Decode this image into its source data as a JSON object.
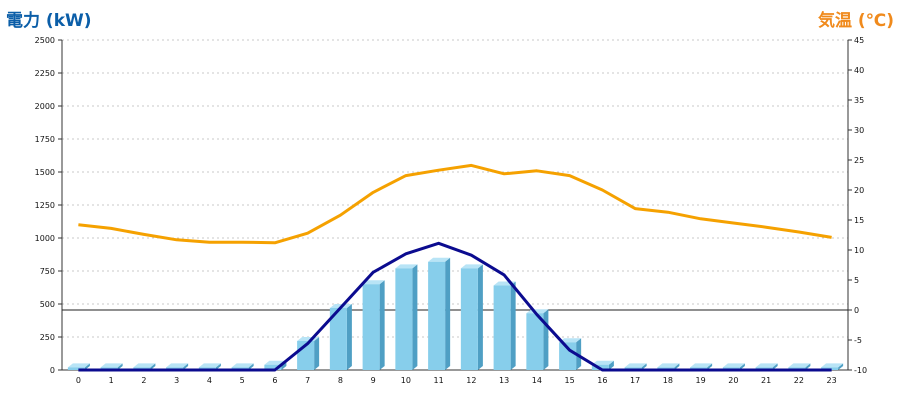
{
  "chart_data": {
    "type": "bar+line",
    "y_left_label": "電力 (kW)",
    "y_right_label": "気温 (℃)",
    "categories": [
      "0",
      "1",
      "2",
      "3",
      "4",
      "5",
      "6",
      "7",
      "8",
      "9",
      "10",
      "11",
      "12",
      "13",
      "14",
      "15",
      "16",
      "17",
      "18",
      "19",
      "20",
      "21",
      "22",
      "23"
    ],
    "y_left_ticks": [
      "0",
      "250",
      "500",
      "750",
      "1000",
      "1250",
      "1500",
      "1750",
      "2000",
      "2250",
      "2500"
    ],
    "y_right_ticks": [
      "-10",
      "-5",
      "0",
      "5",
      "10",
      "15",
      "20",
      "25",
      "30",
      "35",
      "40",
      "45"
    ],
    "ylim_left": [
      0,
      2500
    ],
    "ylim_right": [
      -10,
      45
    ],
    "grid": true,
    "series": [
      {
        "type": "bar",
        "axis": "left",
        "values": [
          20,
          20,
          20,
          20,
          20,
          20,
          40,
          220,
          470,
          650,
          770,
          820,
          770,
          640,
          430,
          210,
          40,
          20,
          20,
          20,
          20,
          20,
          20,
          20
        ]
      },
      {
        "type": "line",
        "axis": "left",
        "values": [
          0,
          0,
          0,
          0,
          0,
          0,
          0,
          200,
          470,
          740,
          880,
          960,
          870,
          720,
          420,
          150,
          0,
          0,
          0,
          0,
          0,
          0,
          0,
          0
        ]
      },
      {
        "type": "line",
        "axis": "right",
        "values": [
          14.2,
          13.6,
          12.6,
          11.7,
          11.3,
          11.3,
          11.2,
          12.8,
          15.8,
          19.6,
          22.4,
          23.3,
          24.1,
          22.7,
          23.2,
          22.4,
          20.0,
          16.9,
          16.3,
          15.2,
          14.5,
          13.8,
          13.0,
          12.1
        ]
      }
    ],
    "colors": {
      "bar_face": "#87ceeb",
      "bar_side": "#4f9fc4",
      "bar_top": "#b8e4f6",
      "power_line": "#0b0b8f",
      "temp_line": "#f5a100",
      "left_label": "#0b5ea8",
      "right_label": "#f08a1c"
    }
  }
}
